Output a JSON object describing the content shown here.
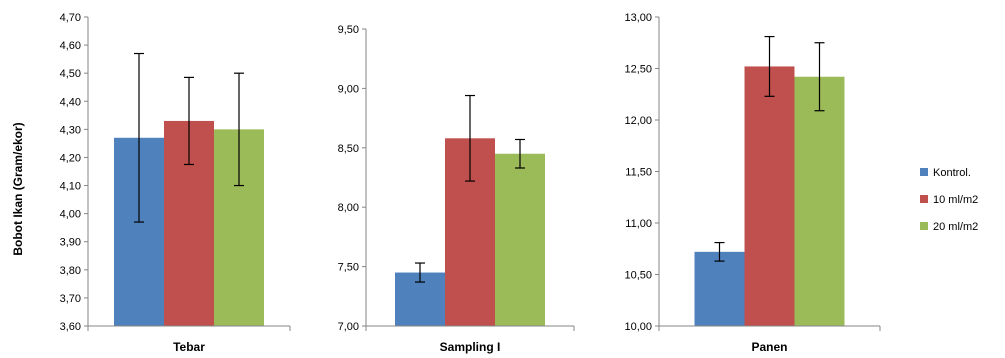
{
  "chart_data": {
    "type": "bar",
    "ylabel": "Bobot Ikan (Gram/ekor)",
    "colors": {
      "Kontrol.": "#4f81bd",
      "10 ml/m2": "#c0504d",
      "20 ml/m2": "#9bbb59"
    },
    "legend": {
      "placement": "right",
      "entries": [
        "Kontrol.",
        "10 ml/m2",
        "20 ml/m2"
      ]
    },
    "panels": [
      {
        "category": "Tebar",
        "ylim": [
          3.6,
          4.7
        ],
        "yticks": [
          "3,60",
          "3,70",
          "3,80",
          "3,90",
          "4,00",
          "4,10",
          "4,20",
          "4,30",
          "4,40",
          "4,50",
          "4,60",
          "4,70"
        ],
        "series": [
          {
            "name": "Kontrol.",
            "value": 4.27,
            "error": 0.3
          },
          {
            "name": "10 ml/m2",
            "value": 4.33,
            "error": 0.155
          },
          {
            "name": "20 ml/m2",
            "value": 4.3,
            "error": 0.2
          }
        ]
      },
      {
        "category": "Sampling I",
        "ylim": [
          7.0,
          9.5
        ],
        "yticks": [
          "7,00",
          "7,50",
          "8,00",
          "8,50",
          "9,00",
          "9,50"
        ],
        "series": [
          {
            "name": "Kontrol.",
            "value": 7.45,
            "error": 0.08
          },
          {
            "name": "10 ml/m2",
            "value": 8.58,
            "error": 0.36
          },
          {
            "name": "20 ml/m2",
            "value": 8.45,
            "error": 0.12
          }
        ]
      },
      {
        "category": "Panen",
        "ylim": [
          10.0,
          13.0
        ],
        "yticks": [
          "10,00",
          "10,50",
          "11,00",
          "11,50",
          "12,00",
          "12,50",
          "13,00"
        ],
        "series": [
          {
            "name": "Kontrol.",
            "value": 10.72,
            "error": 0.09
          },
          {
            "name": "10 ml/m2",
            "value": 12.52,
            "error": 0.29
          },
          {
            "name": "20 ml/m2",
            "value": 12.42,
            "error": 0.33
          }
        ]
      }
    ]
  }
}
